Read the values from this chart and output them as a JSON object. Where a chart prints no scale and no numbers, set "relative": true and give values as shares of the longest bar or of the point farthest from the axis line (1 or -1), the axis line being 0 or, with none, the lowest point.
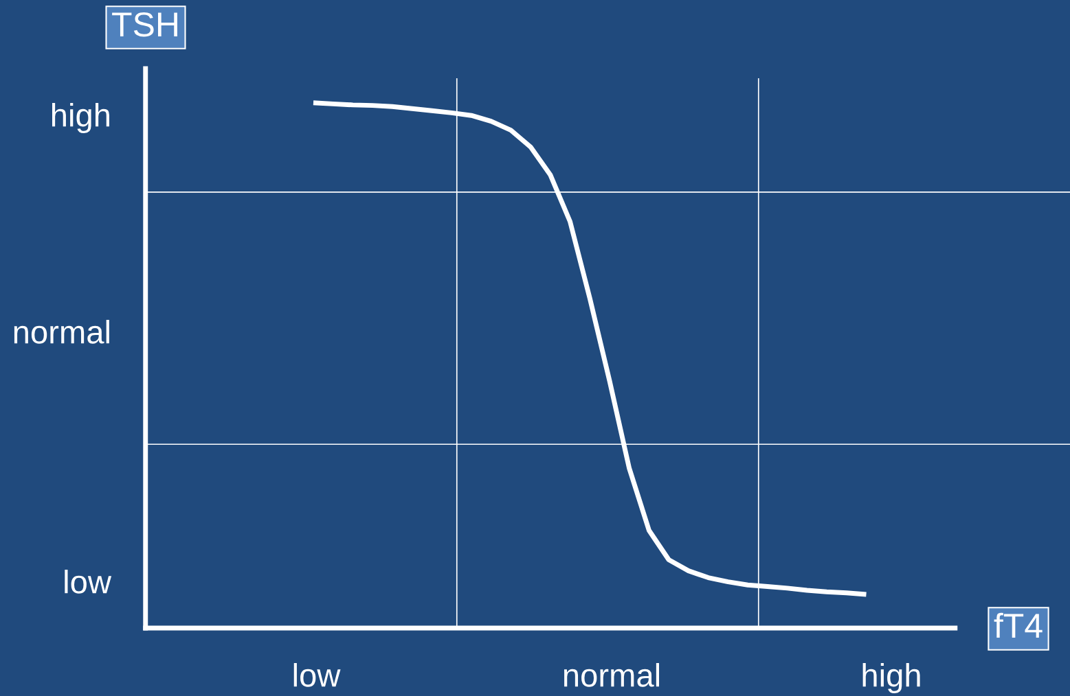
{
  "chart_data": {
    "type": "line",
    "relative": true,
    "xlabel": "fT4",
    "ylabel": "TSH",
    "categories": [
      null,
      null,
      null,
      null,
      null,
      null,
      null,
      null,
      null,
      null,
      null,
      null,
      null,
      null,
      null,
      null,
      null,
      null,
      null,
      null,
      null,
      null,
      null,
      null,
      null,
      null,
      null,
      null,
      null,
      null,
      null,
      null,
      null,
      null,
      null,
      null,
      null,
      null,
      null,
      null,
      null
    ],
    "annotations": [
      "high",
      "normal",
      "low",
      "low",
      "normal",
      "high"
    ],
    "grid": false,
    "legend": false,
    "marker": "none",
    "line_style": "solid",
    "ref_lines": [
      {
        "axis": "y",
        "value": 0.83,
        "color": "#ffffff"
      },
      {
        "axis": "y",
        "value": 0.35,
        "color": "#ffffff"
      }
    ],
    "series": [
      {
        "color": "#ffffff",
        "values": [
          null,
          null,
          null,
          null,
          null,
          null,
          null,
          null,
          1.0,
          0.998,
          0.996,
          0.995,
          0.993,
          0.989,
          0.985,
          0.981,
          0.976,
          0.965,
          0.948,
          0.916,
          0.863,
          0.774,
          0.628,
          0.471,
          0.304,
          0.186,
          0.13,
          0.109,
          0.096,
          0.088,
          0.082,
          0.079,
          0.076,
          0.072,
          0.069,
          0.067,
          0.064,
          null,
          null,
          null,
          null
        ]
      }
    ]
  }
}
